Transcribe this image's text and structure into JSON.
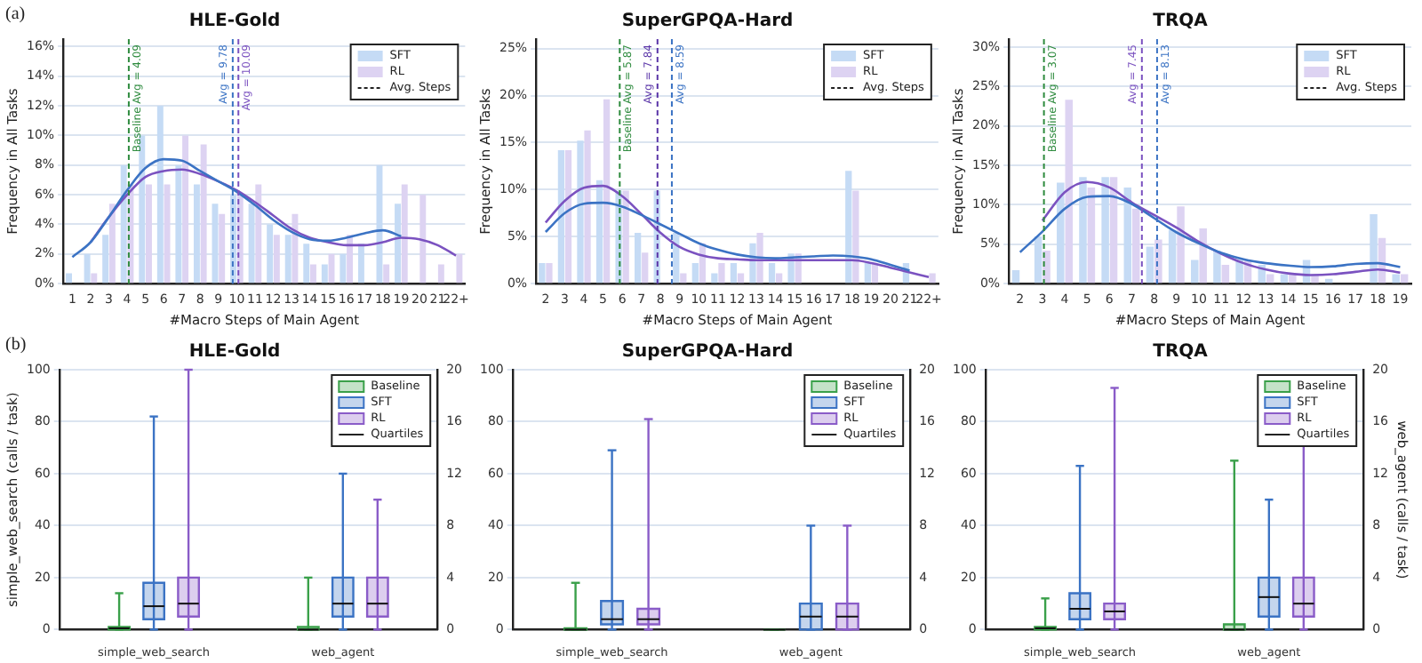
{
  "chart_data": [
    {
      "type": "bar",
      "title": "HLE-Gold",
      "xlabel": "#Macro Steps of Main Agent",
      "ylabel": "Frequency in All Tasks",
      "xlim": [
        0.5,
        22.5
      ],
      "xticks": [
        1,
        2,
        3,
        4,
        5,
        6,
        7,
        8,
        9,
        10,
        11,
        12,
        13,
        14,
        15,
        16,
        17,
        18,
        19,
        20,
        21,
        {
          "value": 22,
          "label": "22+"
        }
      ],
      "ylim": [
        0,
        16.5
      ],
      "yticks": [
        {
          "value": 0,
          "label": "0%"
        },
        {
          "value": 2,
          "label": "2%"
        },
        {
          "value": 4,
          "label": "4%"
        },
        {
          "value": 6,
          "label": "6%"
        },
        {
          "value": 8,
          "label": "8%"
        },
        {
          "value": 10,
          "label": "10%"
        },
        {
          "value": 12,
          "label": "12%"
        },
        {
          "value": 14,
          "label": "14%"
        },
        {
          "value": 16,
          "label": "16%"
        }
      ],
      "grid": "y",
      "legend": "top right",
      "series": [
        {
          "name": "SFT",
          "type": "bar",
          "color": "#c5dbf5",
          "x": [
            1,
            2,
            3,
            4,
            5,
            6,
            7,
            8,
            9,
            10,
            11,
            12,
            13,
            14,
            15,
            16,
            17,
            18,
            19,
            20,
            21,
            22
          ],
          "values": [
            0.7,
            2.0,
            3.3,
            8.0,
            10.0,
            12.0,
            8.0,
            6.7,
            5.4,
            6.0,
            5.4,
            4.0,
            3.3,
            2.7,
            1.3,
            2.0,
            2.7,
            8.0,
            5.4,
            0,
            0,
            0
          ]
        },
        {
          "name": "RL",
          "type": "bar",
          "color": "#ddd3f2",
          "x": [
            1,
            2,
            3,
            4,
            5,
            6,
            7,
            8,
            9,
            10,
            11,
            12,
            13,
            14,
            15,
            16,
            17,
            18,
            19,
            20,
            21,
            22
          ],
          "values": [
            0,
            0.7,
            5.4,
            6.7,
            6.7,
            6.7,
            10.0,
            9.4,
            4.7,
            6.0,
            6.7,
            3.3,
            4.7,
            1.3,
            2.0,
            3.3,
            0,
            1.3,
            6.7,
            6.0,
            1.3,
            2.0
          ]
        },
        {
          "type": "line",
          "color": "#3b73c4",
          "x": [
            1,
            2,
            3,
            4,
            5,
            6,
            7,
            8,
            9,
            10,
            11,
            12,
            13,
            14,
            15,
            16,
            17,
            18,
            19
          ],
          "values": [
            1.8,
            2.8,
            4.5,
            6.3,
            7.8,
            8.4,
            8.3,
            7.6,
            6.9,
            6.2,
            5.3,
            4.3,
            3.5,
            3.0,
            2.9,
            3.1,
            3.4,
            3.6,
            3.2
          ]
        },
        {
          "type": "line",
          "color": "#7b52c0",
          "x": [
            2,
            3,
            4,
            5,
            6,
            7,
            8,
            9,
            10,
            11,
            12,
            13,
            14,
            15,
            16,
            17,
            18,
            19,
            20,
            21,
            22
          ],
          "values": [
            2.8,
            4.5,
            6.0,
            7.2,
            7.6,
            7.7,
            7.4,
            6.9,
            6.3,
            5.5,
            4.6,
            3.7,
            3.1,
            2.8,
            2.6,
            2.6,
            2.8,
            3.1,
            3.0,
            2.6,
            1.9
          ]
        }
      ],
      "ref_lines": [
        {
          "axis": "x",
          "value": 4.09,
          "label": "Baseline Avg = 4.09",
          "color": "#2e8b3e",
          "line_style": "dashed"
        },
        {
          "axis": "x",
          "value": 9.78,
          "label": "Avg = 9.78",
          "color": "#3b73c4",
          "line_style": "dashed"
        },
        {
          "axis": "x",
          "value": 10.09,
          "label": "Avg = 10.09",
          "color": "#7b52c0",
          "line_style": "dashed"
        }
      ],
      "annotations": [
        "Avg. Steps",
        "(a)"
      ]
    },
    {
      "type": "bar",
      "title": "SuperGPQA-Hard",
      "xlabel": "#Macro Steps of Main Agent",
      "ylabel": "Frequency in All Tasks",
      "xlim": [
        1.5,
        22.5
      ],
      "xticks": [
        2,
        3,
        4,
        5,
        6,
        7,
        8,
        9,
        10,
        11,
        12,
        13,
        14,
        15,
        16,
        17,
        18,
        19,
        20,
        21,
        {
          "value": 22,
          "label": "22+"
        }
      ],
      "ylim": [
        0,
        26
      ],
      "yticks": [
        {
          "value": 0,
          "label": "0%"
        },
        {
          "value": 5,
          "label": "5%"
        },
        {
          "value": 10,
          "label": "10%"
        },
        {
          "value": 15,
          "label": "15%"
        },
        {
          "value": 20,
          "label": "20%"
        },
        {
          "value": 25,
          "label": "25%"
        }
      ],
      "grid": "y",
      "legend": "top right",
      "series": [
        {
          "name": "SFT",
          "type": "bar",
          "color": "#c5dbf5",
          "x": [
            2,
            3,
            4,
            5,
            6,
            7,
            8,
            9,
            10,
            11,
            12,
            13,
            14,
            15,
            16,
            17,
            18,
            19,
            20,
            21,
            22
          ],
          "values": [
            2.2,
            14.2,
            15.2,
            11.0,
            9.9,
            5.4,
            9.9,
            5.4,
            2.2,
            1.1,
            2.2,
            4.3,
            2.2,
            3.2,
            0,
            0,
            12.0,
            2.2,
            0,
            2.2,
            0
          ]
        },
        {
          "name": "RL",
          "type": "bar",
          "color": "#ddd3f2",
          "x": [
            2,
            3,
            4,
            5,
            6,
            7,
            8,
            9,
            10,
            11,
            12,
            13,
            14,
            15,
            16,
            17,
            18,
            19,
            20,
            21,
            22
          ],
          "values": [
            2.2,
            14.2,
            16.3,
            19.6,
            9.9,
            3.3,
            0,
            1.1,
            4.3,
            2.2,
            1.1,
            5.4,
            1.1,
            3.2,
            0,
            0,
            9.9,
            2.2,
            0,
            0,
            1.1
          ]
        },
        {
          "type": "line",
          "color": "#3b73c4",
          "x": [
            2,
            3,
            4,
            5,
            6,
            7,
            8,
            9,
            10,
            11,
            12,
            13,
            14,
            15,
            16,
            17,
            18,
            19,
            20,
            21
          ],
          "values": [
            5.5,
            7.5,
            8.5,
            8.6,
            8.2,
            7.3,
            6.3,
            5.3,
            4.3,
            3.6,
            3.1,
            2.8,
            2.7,
            2.8,
            2.9,
            3.0,
            2.9,
            2.6,
            2.0,
            1.4
          ]
        },
        {
          "type": "line",
          "color": "#7b52c0",
          "x": [
            2,
            3,
            4,
            5,
            6,
            7,
            8,
            9,
            10,
            11,
            12,
            13,
            14,
            15,
            16,
            17,
            18,
            19,
            20,
            21,
            22
          ],
          "values": [
            6.5,
            8.8,
            10.2,
            10.4,
            9.3,
            7.4,
            5.4,
            3.9,
            3.1,
            2.7,
            2.6,
            2.5,
            2.5,
            2.5,
            2.5,
            2.5,
            2.5,
            2.2,
            1.7,
            1.2,
            0.7
          ]
        }
      ],
      "ref_lines": [
        {
          "axis": "x",
          "value": 5.87,
          "label": "Baseline Avg = 5.87",
          "color": "#2e8b3e",
          "line_style": "dashed"
        },
        {
          "axis": "x",
          "value": 7.84,
          "label": "Avg = 7.84",
          "color": "#5a35a8",
          "line_style": "dashed"
        },
        {
          "axis": "x",
          "value": 8.59,
          "label": "Avg = 8.59",
          "color": "#3b73c4",
          "line_style": "dashed"
        }
      ],
      "annotations": [
        "Avg. Steps"
      ]
    },
    {
      "type": "bar",
      "title": "TRQA",
      "xlabel": "#Macro Steps of Main Agent",
      "ylabel": "Frequency in All Tasks",
      "xlim": [
        1.5,
        19.5
      ],
      "xticks": [
        2,
        3,
        4,
        5,
        6,
        7,
        8,
        9,
        10,
        11,
        12,
        13,
        14,
        15,
        16,
        17,
        18,
        19
      ],
      "ylim": [
        0,
        31
      ],
      "yticks": [
        {
          "value": 0,
          "label": "0%"
        },
        {
          "value": 5,
          "label": "5%"
        },
        {
          "value": 10,
          "label": "10%"
        },
        {
          "value": 15,
          "label": "15%"
        },
        {
          "value": 20,
          "label": "20%"
        },
        {
          "value": 25,
          "label": "25%"
        },
        {
          "value": 30,
          "label": "30%"
        }
      ],
      "grid": "y",
      "legend": "top right",
      "series": [
        {
          "name": "SFT",
          "type": "bar",
          "color": "#c5dbf5",
          "x": [
            2,
            3,
            4,
            5,
            6,
            7,
            8,
            9,
            10,
            11,
            12,
            13,
            14,
            15,
            16,
            17,
            18,
            19
          ],
          "values": [
            1.7,
            6.0,
            12.8,
            13.5,
            13.5,
            12.2,
            4.7,
            6.8,
            3.0,
            4.2,
            3.0,
            2.4,
            1.2,
            3.0,
            0.6,
            0,
            8.8,
            1.2
          ]
        },
        {
          "name": "RL",
          "type": "bar",
          "color": "#ddd3f2",
          "x": [
            2,
            3,
            4,
            5,
            6,
            7,
            8,
            9,
            10,
            11,
            12,
            13,
            14,
            15,
            16,
            17,
            18,
            19
          ],
          "values": [
            0,
            4.2,
            23.3,
            12.2,
            13.5,
            9.5,
            5.6,
            9.8,
            7.0,
            2.4,
            3.0,
            1.2,
            1.2,
            1.2,
            0,
            0,
            5.8,
            1.2
          ]
        },
        {
          "type": "line",
          "color": "#3b73c4",
          "x": [
            2,
            3,
            4,
            5,
            6,
            7,
            8,
            9,
            10,
            11,
            12,
            13,
            14,
            15,
            16,
            17,
            18,
            19
          ],
          "values": [
            4.0,
            6.6,
            9.5,
            11.0,
            11.1,
            10.1,
            8.3,
            6.5,
            5.1,
            3.9,
            3.1,
            2.6,
            2.3,
            2.1,
            2.2,
            2.5,
            2.6,
            2.1
          ]
        },
        {
          "type": "line",
          "color": "#7b52c0",
          "x": [
            3,
            4,
            5,
            6,
            7,
            8,
            9,
            10,
            11,
            12,
            13,
            14,
            15,
            16,
            17,
            18,
            19
          ],
          "values": [
            8.0,
            11.6,
            12.9,
            12.2,
            10.3,
            8.7,
            7.1,
            5.3,
            3.8,
            2.6,
            1.8,
            1.3,
            1.1,
            1.2,
            1.5,
            1.8,
            1.4
          ]
        }
      ],
      "ref_lines": [
        {
          "axis": "x",
          "value": 3.07,
          "label": "Baseline Avg = 3.07",
          "color": "#2e8b3e",
          "line_style": "dashed"
        },
        {
          "axis": "x",
          "value": 7.45,
          "label": "Avg = 7.45",
          "color": "#7b52c0",
          "line_style": "dashed"
        },
        {
          "axis": "x",
          "value": 8.13,
          "label": "Avg = 8.13",
          "color": "#3b73c4",
          "line_style": "dashed"
        }
      ],
      "annotations": [
        "Avg. Steps"
      ]
    },
    {
      "type": "box",
      "title": "HLE-Gold",
      "ylabel": "simple_web_search (calls / task)",
      "categories": [
        "simple_web_search",
        "web_agent"
      ],
      "ylim": [
        0,
        100
      ],
      "yticks": [
        0,
        20,
        40,
        60,
        80,
        100
      ],
      "y2lim": [
        0,
        20
      ],
      "y2ticks": [
        0,
        4,
        8,
        12,
        16,
        20
      ],
      "grid": "y",
      "legend": "top right",
      "series": [
        {
          "name": "Baseline",
          "color": "#3aa04a",
          "boxes": [
            {
              "low": 0,
              "q1": 0,
              "median": 0.5,
              "q3": 1,
              "high": 14
            },
            null
          ]
        },
        {
          "name": "SFT",
          "color": "#3b73c4",
          "boxes": [
            {
              "low": 0,
              "q1": 4,
              "median": 9,
              "q3": 18,
              "high": 82
            },
            null
          ]
        },
        {
          "name": "RL",
          "color": "#8a5cc8",
          "boxes": [
            {
              "low": 0,
              "q1": 5,
              "median": 10,
              "q3": 20,
              "high": 100
            },
            null
          ]
        },
        {
          "color": "#3aa04a",
          "axis": "y2",
          "boxes": [
            null,
            {
              "low": 0,
              "q1": 0,
              "median": 0,
              "q3": 0.2,
              "high": 4
            }
          ]
        },
        {
          "color": "#3b73c4",
          "axis": "y2",
          "boxes": [
            null,
            {
              "low": 0,
              "q1": 1,
              "median": 2,
              "q3": 4,
              "high": 12
            }
          ]
        },
        {
          "color": "#8a5cc8",
          "axis": "y2",
          "boxes": [
            null,
            {
              "low": 0,
              "q1": 1,
              "median": 2,
              "q3": 4,
              "high": 10
            }
          ]
        }
      ],
      "annotations": [
        "Quartiles",
        "(b)"
      ]
    },
    {
      "type": "box",
      "title": "SuperGPQA-Hard",
      "categories": [
        "simple_web_search",
        "web_agent"
      ],
      "ylim": [
        0,
        100
      ],
      "yticks": [
        0,
        20,
        40,
        60,
        80,
        100
      ],
      "y2lim": [
        0,
        20
      ],
      "y2ticks": [
        0,
        4,
        8,
        12,
        16,
        20
      ],
      "grid": "y",
      "legend": "top right",
      "series": [
        {
          "name": "Baseline",
          "color": "#3aa04a",
          "boxes": [
            {
              "low": 0,
              "q1": 0,
              "median": 0,
              "q3": 0.5,
              "high": 18
            },
            null
          ]
        },
        {
          "name": "SFT",
          "color": "#3b73c4",
          "boxes": [
            {
              "low": 0,
              "q1": 2,
              "median": 4,
              "q3": 11,
              "high": 69
            },
            null
          ]
        },
        {
          "name": "RL",
          "color": "#8a5cc8",
          "boxes": [
            {
              "low": 0,
              "q1": 2,
              "median": 4,
              "q3": 8,
              "high": 81
            },
            null
          ]
        },
        {
          "color": "#3aa04a",
          "axis": "y2",
          "boxes": [
            null,
            {
              "low": 0,
              "q1": 0,
              "median": 0,
              "q3": 0,
              "high": 0
            }
          ]
        },
        {
          "color": "#3b73c4",
          "axis": "y2",
          "boxes": [
            null,
            {
              "low": 0,
              "q1": 0,
              "median": 1,
              "q3": 2,
              "high": 8
            }
          ]
        },
        {
          "color": "#8a5cc8",
          "axis": "y2",
          "boxes": [
            null,
            {
              "low": 0,
              "q1": 0,
              "median": 1,
              "q3": 2,
              "high": 8
            }
          ]
        }
      ],
      "annotations": [
        "Quartiles"
      ]
    },
    {
      "type": "box",
      "title": "TRQA",
      "y2label": "web_agent (calls / task)",
      "categories": [
        "simple_web_search",
        "web_agent"
      ],
      "ylim": [
        0,
        100
      ],
      "yticks": [
        0,
        20,
        40,
        60,
        80,
        100
      ],
      "y2lim": [
        0,
        20
      ],
      "y2ticks": [
        0,
        4,
        8,
        12,
        16,
        20
      ],
      "grid": "y",
      "legend": "top right",
      "series": [
        {
          "name": "Baseline",
          "color": "#3aa04a",
          "boxes": [
            {
              "low": 0,
              "q1": 0,
              "median": 0.5,
              "q3": 1,
              "high": 12
            },
            null
          ]
        },
        {
          "name": "SFT",
          "color": "#3b73c4",
          "boxes": [
            {
              "low": 0,
              "q1": 4,
              "median": 8,
              "q3": 14,
              "high": 63
            },
            null
          ]
        },
        {
          "name": "RL",
          "color": "#8a5cc8",
          "boxes": [
            {
              "low": 0,
              "q1": 4,
              "median": 7,
              "q3": 10,
              "high": 93
            },
            null
          ]
        },
        {
          "color": "#3aa04a",
          "axis": "y2",
          "boxes": [
            null,
            {
              "low": 0,
              "q1": 0,
              "median": 0,
              "q3": 0.4,
              "high": 13
            }
          ]
        },
        {
          "color": "#3b73c4",
          "axis": "y2",
          "boxes": [
            null,
            {
              "low": 0,
              "q1": 1,
              "median": 2.5,
              "q3": 4,
              "high": 10
            }
          ]
        },
        {
          "color": "#8a5cc8",
          "axis": "y2",
          "boxes": [
            null,
            {
              "low": 0,
              "q1": 1,
              "median": 2,
              "q3": 4,
              "high": 16
            }
          ]
        }
      ],
      "annotations": [
        "Quartiles"
      ]
    }
  ]
}
